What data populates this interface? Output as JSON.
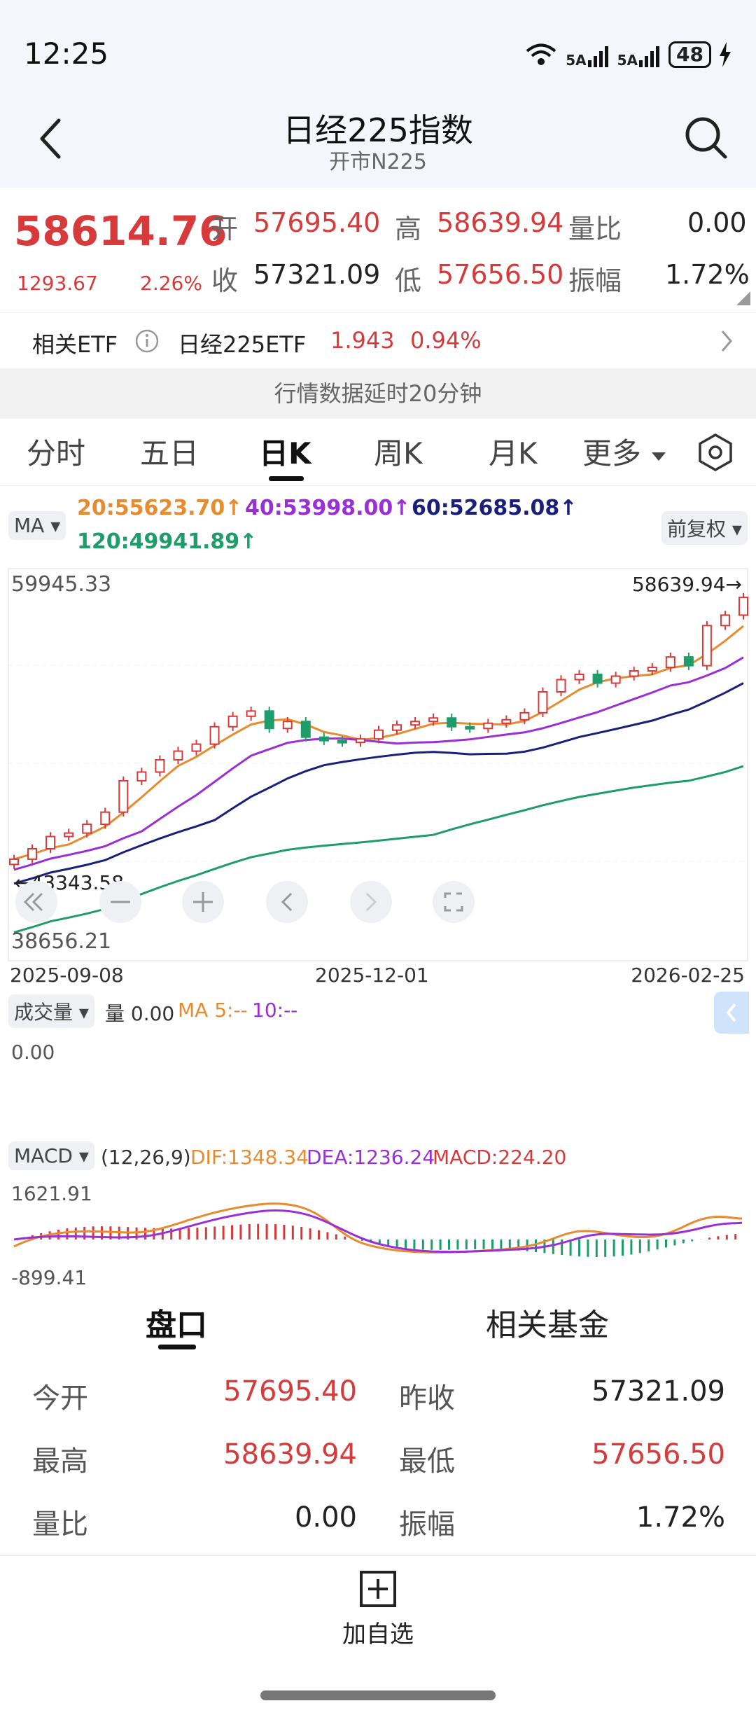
{
  "status": {
    "time": "12:25",
    "battery": "48",
    "net1": "5A",
    "net2": "5A"
  },
  "nav": {
    "title": "日经225指数",
    "subtitle": "开市N225"
  },
  "quote": {
    "price": "58614.76",
    "change": "1293.67",
    "change_pct": "2.26%",
    "open_label": "开",
    "open": "57695.40",
    "high_label": "高",
    "high": "58639.94",
    "vol_ratio_label": "量比",
    "vol_ratio": "0.00",
    "close_label": "收",
    "prev_close": "57321.09",
    "low_label": "低",
    "low": "57656.50",
    "amp_label": "振幅",
    "amplitude": "1.72%"
  },
  "etf": {
    "label": "相关ETF",
    "name": "日经225ETF",
    "price": "1.943",
    "pct": "0.94%"
  },
  "notice": "行情数据延时20分钟",
  "tabs": [
    "分时",
    "五日",
    "日K",
    "周K",
    "月K",
    "更多"
  ],
  "ma": {
    "label": "MA",
    "adjust": "前复权",
    "ma20": "20:55623.70↑",
    "ma40": "40:53998.00↑",
    "ma60": "60:52685.08↑",
    "ma120": "120:49941.89↑"
  },
  "chart_data": {
    "type": "candlestick",
    "y_top_label": "59945.33",
    "y_bottom_label": "38656.21",
    "max_marker": "58639.94→",
    "min_marker": "←43343.58",
    "x_labels": [
      "2025-09-08",
      "2025-12-01",
      "2026-02-25"
    ],
    "ylim": [
      38656.21,
      59945.33
    ],
    "close_series": [
      43600,
      44200,
      44900,
      45100,
      45600,
      46300,
      48100,
      48600,
      49300,
      49800,
      50200,
      51200,
      51800,
      52100,
      51100,
      51500,
      50600,
      50400,
      50300,
      50500,
      51000,
      51300,
      51500,
      51700,
      51200,
      51100,
      51400,
      51600,
      52000,
      53200,
      53900,
      54200,
      53700,
      54100,
      54400,
      54600,
      55200,
      54700,
      57000,
      57600,
      58614
    ]
  },
  "volume": {
    "label": "成交量",
    "vol": "量 0.00",
    "ma5": "MA 5:--",
    "ma10": "10:--",
    "axis": "0.00"
  },
  "macd": {
    "label": "MACD",
    "params": "(12,26,9)",
    "dif": "DIF:1348.34",
    "dea": "DEA:1236.24",
    "macd": "MACD:224.20",
    "y_top": "1621.91",
    "y_bottom": "-899.41"
  },
  "panel": {
    "tab1": "盘口",
    "tab2": "相关基金",
    "rows": [
      {
        "l1": "今开",
        "v1": "57695.40",
        "l2": "昨收",
        "v2": "57321.09"
      },
      {
        "l1": "最高",
        "v1": "58639.94",
        "l2": "最低",
        "v2": "57656.50"
      },
      {
        "l1": "量比",
        "v1": "0.00",
        "l2": "振幅",
        "v2": "1.72%"
      }
    ]
  },
  "footer": {
    "add_label": "加自选"
  },
  "colors": {
    "up": "#d73a3a",
    "down": "#1e9c6a",
    "ma20": "#e88a2e",
    "ma40": "#9b2fd6",
    "ma60": "#1a1f7a",
    "ma120": "#1e9c6a"
  }
}
